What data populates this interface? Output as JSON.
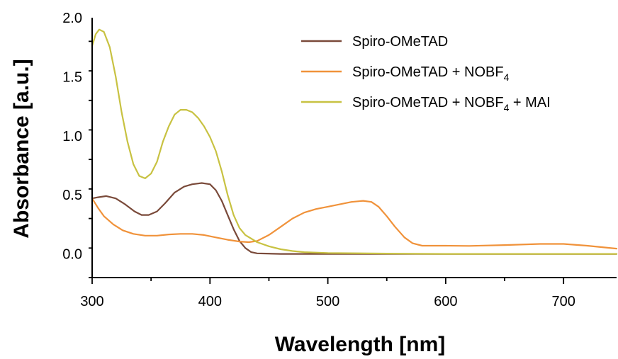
{
  "chart_data": {
    "type": "line",
    "title": "",
    "xlabel": "Wavelength [nm]",
    "ylabel": "Absorbance [a.u.]",
    "xlim": [
      300,
      745
    ],
    "ylim": [
      -0.2,
      2.0
    ],
    "x_ticks": [
      300,
      400,
      500,
      600,
      700
    ],
    "y_ticks": [
      0.0,
      0.5,
      1.0,
      1.5,
      2.0
    ],
    "x_tick_labels": [
      "300",
      "400",
      "500",
      "600",
      "700"
    ],
    "y_tick_labels": [
      "0.0",
      "0.5",
      "1.0",
      "1.5",
      "2.0"
    ],
    "grid": false,
    "legend_position": "top-right",
    "legend": [
      {
        "main": "Spiro-OMeTAD",
        "sub": "",
        "tail": ""
      },
      {
        "main": "Spiro-OMeTAD + NOBF",
        "sub": "4",
        "tail": ""
      },
      {
        "main": "Spiro-OMeTAD + NOBF",
        "sub": "4",
        "tail": " + MAI"
      }
    ],
    "series": [
      {
        "color": "#7a4a3a",
        "points": [
          [
            300,
            0.47
          ],
          [
            305,
            0.48
          ],
          [
            312,
            0.49
          ],
          [
            320,
            0.47
          ],
          [
            328,
            0.42
          ],
          [
            336,
            0.36
          ],
          [
            342,
            0.33
          ],
          [
            348,
            0.33
          ],
          [
            355,
            0.36
          ],
          [
            362,
            0.43
          ],
          [
            370,
            0.52
          ],
          [
            378,
            0.57
          ],
          [
            385,
            0.59
          ],
          [
            393,
            0.6
          ],
          [
            400,
            0.59
          ],
          [
            405,
            0.54
          ],
          [
            410,
            0.45
          ],
          [
            415,
            0.33
          ],
          [
            420,
            0.21
          ],
          [
            425,
            0.11
          ],
          [
            430,
            0.05
          ],
          [
            435,
            0.015
          ],
          [
            440,
            0.005
          ],
          [
            460,
            0.0
          ],
          [
            500,
            0.0
          ],
          [
            600,
            0.0
          ],
          [
            745,
            0.0
          ]
        ]
      },
      {
        "color": "#f0923a",
        "points": [
          [
            300,
            0.47
          ],
          [
            305,
            0.39
          ],
          [
            310,
            0.32
          ],
          [
            318,
            0.25
          ],
          [
            326,
            0.2
          ],
          [
            335,
            0.17
          ],
          [
            345,
            0.155
          ],
          [
            355,
            0.155
          ],
          [
            365,
            0.165
          ],
          [
            375,
            0.17
          ],
          [
            385,
            0.17
          ],
          [
            395,
            0.16
          ],
          [
            405,
            0.14
          ],
          [
            415,
            0.12
          ],
          [
            425,
            0.105
          ],
          [
            433,
            0.1
          ],
          [
            440,
            0.11
          ],
          [
            450,
            0.16
          ],
          [
            460,
            0.23
          ],
          [
            470,
            0.3
          ],
          [
            480,
            0.35
          ],
          [
            490,
            0.38
          ],
          [
            500,
            0.4
          ],
          [
            510,
            0.42
          ],
          [
            520,
            0.44
          ],
          [
            530,
            0.45
          ],
          [
            537,
            0.44
          ],
          [
            543,
            0.4
          ],
          [
            550,
            0.32
          ],
          [
            557,
            0.23
          ],
          [
            565,
            0.14
          ],
          [
            572,
            0.09
          ],
          [
            580,
            0.07
          ],
          [
            600,
            0.07
          ],
          [
            620,
            0.068
          ],
          [
            650,
            0.075
          ],
          [
            680,
            0.085
          ],
          [
            700,
            0.085
          ],
          [
            720,
            0.07
          ],
          [
            745,
            0.045
          ]
        ]
      },
      {
        "color": "#c8c242",
        "points": [
          [
            300,
            1.76
          ],
          [
            303,
            1.86
          ],
          [
            306,
            1.9
          ],
          [
            310,
            1.88
          ],
          [
            315,
            1.75
          ],
          [
            320,
            1.5
          ],
          [
            325,
            1.2
          ],
          [
            330,
            0.95
          ],
          [
            335,
            0.76
          ],
          [
            340,
            0.66
          ],
          [
            345,
            0.64
          ],
          [
            350,
            0.68
          ],
          [
            355,
            0.78
          ],
          [
            360,
            0.95
          ],
          [
            365,
            1.08
          ],
          [
            370,
            1.18
          ],
          [
            375,
            1.22
          ],
          [
            380,
            1.22
          ],
          [
            385,
            1.2
          ],
          [
            390,
            1.15
          ],
          [
            395,
            1.08
          ],
          [
            400,
            0.99
          ],
          [
            405,
            0.87
          ],
          [
            410,
            0.7
          ],
          [
            415,
            0.5
          ],
          [
            420,
            0.33
          ],
          [
            425,
            0.22
          ],
          [
            430,
            0.16
          ],
          [
            440,
            0.1
          ],
          [
            450,
            0.065
          ],
          [
            460,
            0.04
          ],
          [
            470,
            0.025
          ],
          [
            480,
            0.015
          ],
          [
            500,
            0.008
          ],
          [
            550,
            0.003
          ],
          [
            600,
            0.0
          ],
          [
            745,
            0.0
          ]
        ]
      }
    ]
  }
}
